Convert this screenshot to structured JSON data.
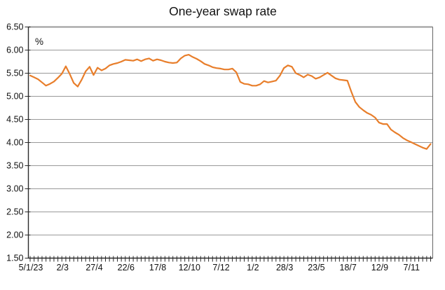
{
  "chart_data": {
    "type": "line",
    "title": "One-year swap rate",
    "ylabel": "%",
    "xlabel": "",
    "ylim": [
      1.5,
      6.5
    ],
    "ytick_step": 0.5,
    "ytick_labels": [
      "6.50",
      "6.00",
      "5.50",
      "5.00",
      "4.50",
      "4.00",
      "3.50",
      "3.00",
      "2.50",
      "2.00",
      "1.50"
    ],
    "xtick_labels": [
      "5/1/23",
      "2/3",
      "27/4",
      "22/6",
      "17/8",
      "12/10",
      "7/12",
      "1/2",
      "28/3",
      "23/5",
      "18/7",
      "12/9",
      "7/11"
    ],
    "xtick_label_every": 8,
    "x_minor_tick_unit": "week",
    "grid": "horizontal",
    "legend": "none",
    "plot_border": true,
    "series": [
      {
        "name": "One-year swap rate",
        "color": "#E87E2B",
        "values": [
          5.45,
          5.41,
          5.37,
          5.3,
          5.23,
          5.27,
          5.32,
          5.4,
          5.49,
          5.65,
          5.48,
          5.29,
          5.21,
          5.36,
          5.54,
          5.64,
          5.46,
          5.62,
          5.56,
          5.6,
          5.67,
          5.7,
          5.72,
          5.75,
          5.79,
          5.78,
          5.77,
          5.8,
          5.76,
          5.8,
          5.82,
          5.77,
          5.8,
          5.78,
          5.75,
          5.73,
          5.72,
          5.73,
          5.82,
          5.88,
          5.9,
          5.85,
          5.81,
          5.76,
          5.7,
          5.67,
          5.63,
          5.61,
          5.6,
          5.58,
          5.58,
          5.6,
          5.52,
          5.31,
          5.27,
          5.26,
          5.23,
          5.23,
          5.26,
          5.33,
          5.3,
          5.32,
          5.34,
          5.45,
          5.61,
          5.67,
          5.64,
          5.5,
          5.46,
          5.41,
          5.47,
          5.44,
          5.38,
          5.41,
          5.46,
          5.51,
          5.45,
          5.39,
          5.36,
          5.35,
          5.34,
          5.1,
          4.88,
          4.77,
          4.7,
          4.64,
          4.6,
          4.54,
          4.43,
          4.4,
          4.4,
          4.28,
          4.22,
          4.17,
          4.1,
          4.05,
          4.01,
          3.97,
          3.93,
          3.89,
          3.86,
          3.97
        ]
      }
    ]
  },
  "colors": {
    "line": "#E87E2B",
    "grid": "#999999",
    "top_border": "#999999",
    "right_border": "#666666",
    "axis": "#2b2b2b",
    "text": "#111111"
  }
}
